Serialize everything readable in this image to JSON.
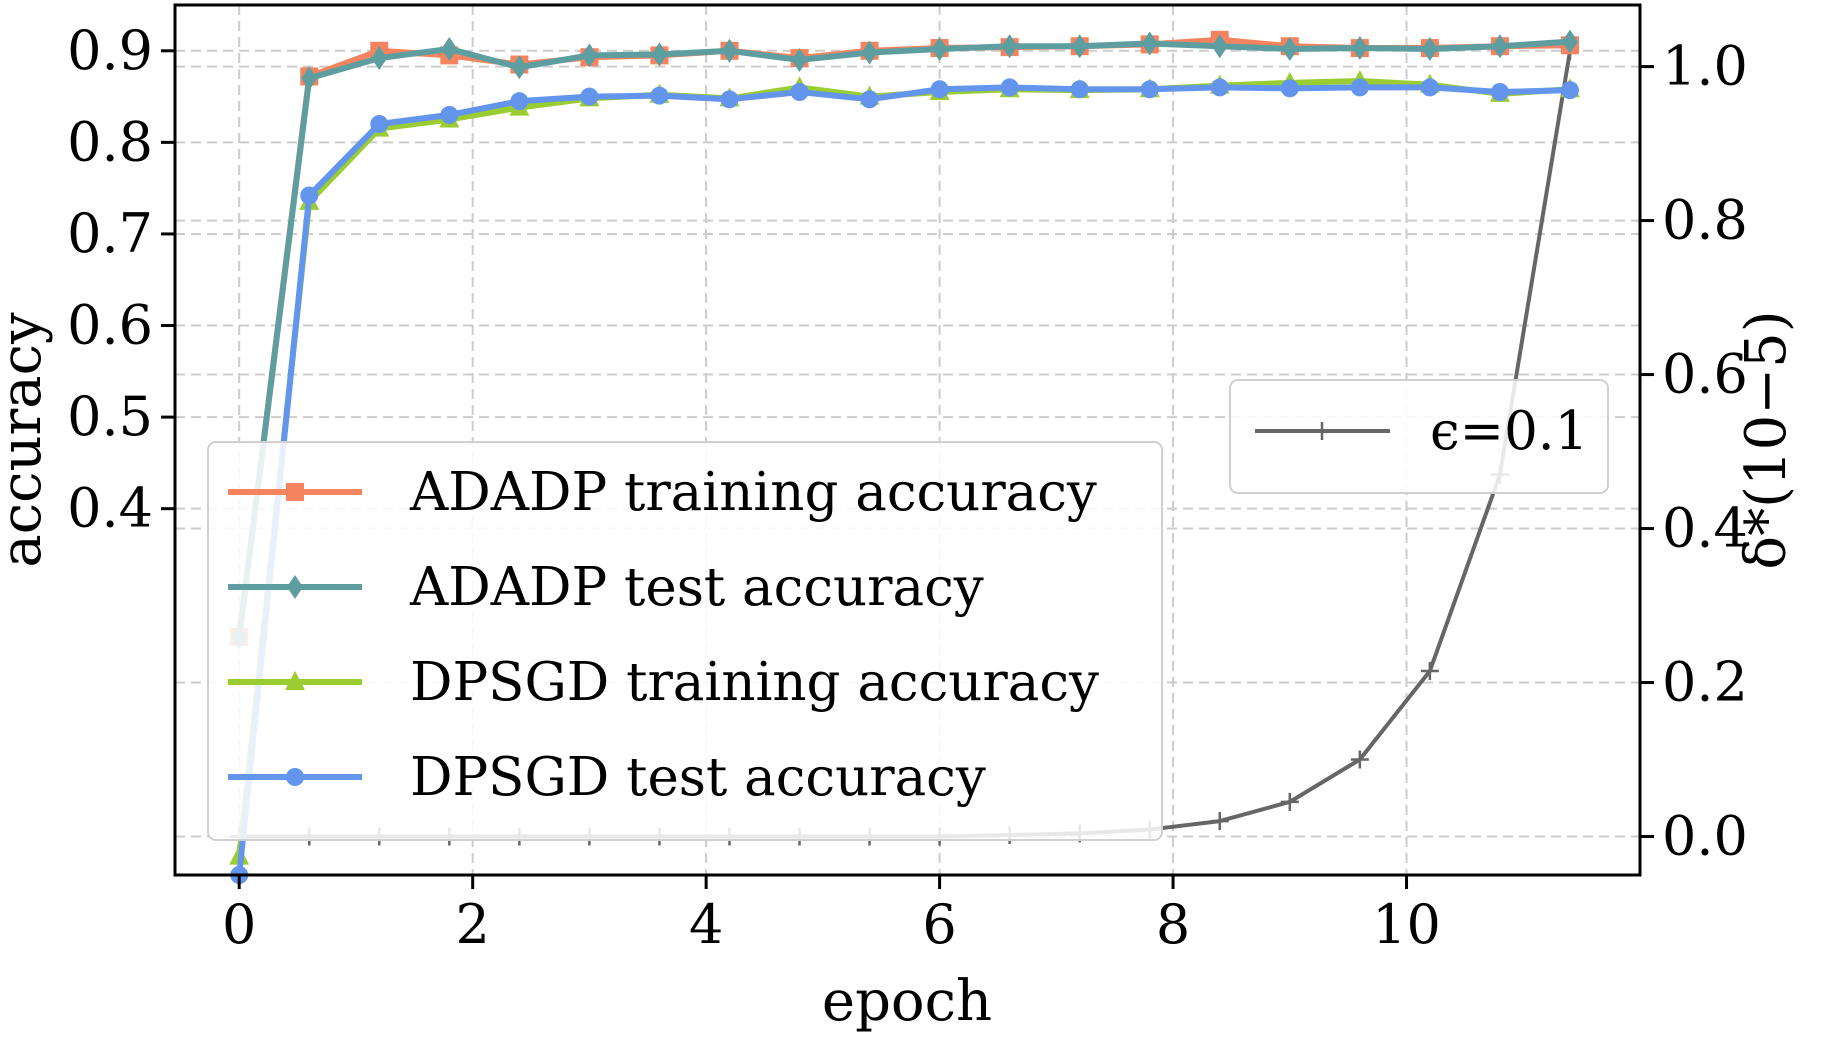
{
  "chart_data": {
    "type": "line",
    "xlabel": "epoch",
    "ylabel_left": "accuracy",
    "ylabel_right": "δ*(10−5)",
    "xlim": [
      -0.55,
      12.0
    ],
    "ylim_left": [
      0.0,
      0.95
    ],
    "ylim_right": [
      -0.05,
      1.08
    ],
    "x_ticks": [
      0,
      2,
      4,
      6,
      8,
      10
    ],
    "y_ticks_left": [
      0.4,
      0.5,
      0.6,
      0.7,
      0.8,
      0.9
    ],
    "y_ticks_right": [
      0.0,
      0.2,
      0.4,
      0.6,
      0.8,
      1.0
    ],
    "grid": true,
    "x": [
      0,
      0.6,
      1.2,
      1.8,
      2.4,
      3.0,
      3.6,
      4.2,
      4.8,
      5.4,
      6.0,
      6.6,
      7.2,
      7.8,
      8.4,
      9.0,
      9.6,
      10.2,
      10.8,
      11.4
    ],
    "series": [
      {
        "name": "ADADP training accuracy",
        "axis": "left",
        "color": "#f4845f",
        "marker": "square",
        "values": [
          0.26,
          0.872,
          0.9,
          0.895,
          0.885,
          0.893,
          0.895,
          0.9,
          0.892,
          0.9,
          0.903,
          0.904,
          0.905,
          0.907,
          0.912,
          0.905,
          0.903,
          0.903,
          0.905,
          0.906
        ]
      },
      {
        "name": "ADADP test accuracy",
        "axis": "left",
        "color": "#5f9ea0",
        "marker": "diamond",
        "values": [
          0.26,
          0.87,
          0.892,
          0.902,
          0.882,
          0.895,
          0.896,
          0.9,
          0.89,
          0.898,
          0.902,
          0.905,
          0.905,
          0.908,
          0.905,
          0.902,
          0.903,
          0.902,
          0.905,
          0.91
        ]
      },
      {
        "name": "DPSGD training accuracy",
        "axis": "left",
        "color": "#9acd32",
        "marker": "triangle",
        "values": [
          0.02,
          0.735,
          0.815,
          0.825,
          0.838,
          0.848,
          0.852,
          0.848,
          0.86,
          0.85,
          0.855,
          0.858,
          0.857,
          0.858,
          0.862,
          0.865,
          0.867,
          0.863,
          0.853,
          0.858
        ]
      },
      {
        "name": "DPSGD test accuracy",
        "axis": "left",
        "color": "#6495ed",
        "marker": "circle",
        "values": [
          0.0,
          0.742,
          0.82,
          0.83,
          0.845,
          0.85,
          0.851,
          0.847,
          0.855,
          0.847,
          0.858,
          0.86,
          0.858,
          0.858,
          0.86,
          0.859,
          0.86,
          0.86,
          0.855,
          0.857
        ]
      },
      {
        "name": "ϵ=0.1",
        "axis": "right",
        "color": "#666666",
        "marker": "plus",
        "values": [
          0.0,
          0.0,
          0.0,
          0.0,
          0.0,
          0.0,
          0.0,
          0.0,
          0.0,
          0.0,
          0.0,
          0.002,
          0.004,
          0.009,
          0.02,
          0.045,
          0.1,
          0.215,
          0.47,
          1.02
        ]
      }
    ],
    "legend_left": {
      "placement": "lower-left",
      "entries": [
        "ADADP training accuracy",
        "ADADP test accuracy",
        "DPSGD training accuracy",
        "DPSGD test accuracy"
      ]
    },
    "legend_right": {
      "placement": "center-right",
      "entries": [
        "ϵ=0.1"
      ]
    }
  }
}
